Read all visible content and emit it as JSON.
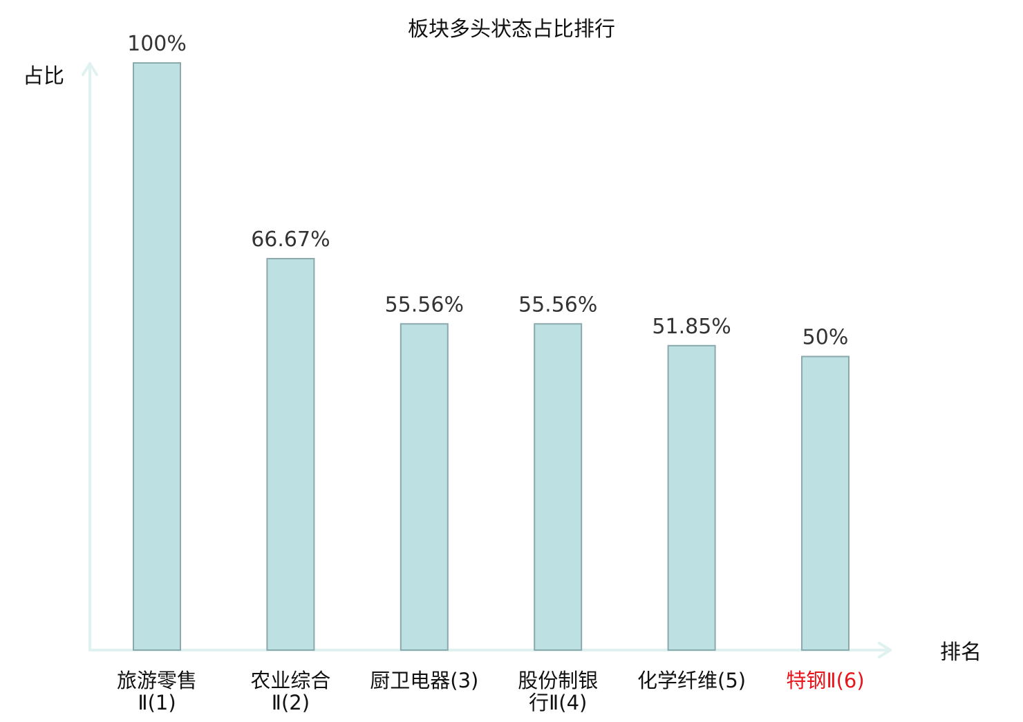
{
  "chart_data": {
    "type": "bar",
    "title": "板块多头状态占比排行",
    "ylabel": "占比",
    "xlabel": "排名",
    "ylim": [
      0,
      100
    ],
    "grid": false,
    "categories": [
      [
        "旅游零售",
        "Ⅱ(1)"
      ],
      [
        "农业综合",
        "Ⅱ(2)"
      ],
      [
        "厨卫电器(3)"
      ],
      [
        "股份制银",
        "行Ⅱ(4)"
      ],
      [
        "化学纤维(5)"
      ],
      [
        "特钢Ⅱ(6)"
      ]
    ],
    "values": [
      100,
      66.67,
      55.56,
      55.56,
      51.85,
      50
    ],
    "value_labels": [
      "100%",
      "66.67%",
      "55.56%",
      "55.56%",
      "51.85%",
      "50%"
    ],
    "highlight_index": 5,
    "colors": {
      "bar_fill": "#bde0e3",
      "bar_stroke": "#8aa9ad",
      "axis": "#dff2ef",
      "highlight_text": "#e8141b"
    }
  }
}
